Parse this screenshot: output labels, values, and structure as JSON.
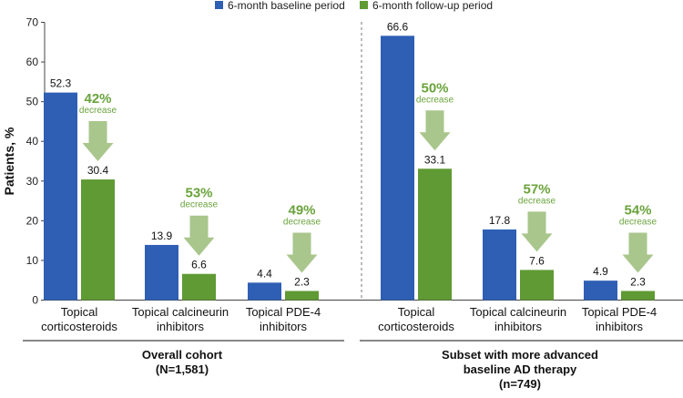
{
  "chart_data": {
    "type": "bar",
    "ylabel": "Patients, %",
    "ylim": [
      0,
      70
    ],
    "yticks": [
      0,
      10,
      20,
      30,
      40,
      50,
      60,
      70
    ],
    "colors": {
      "baseline": "#2e5fb4",
      "followup": "#5f9a34",
      "arrow": "#a9c68c",
      "pct_text": "#6aa33c"
    },
    "legend": [
      {
        "key": "baseline",
        "label": "6-month baseline period"
      },
      {
        "key": "followup",
        "label": "6-month follow-up period"
      }
    ],
    "groups": [
      {
        "label_lines": [
          "Overall cohort",
          "(N=1,581)"
        ],
        "categories": [
          {
            "label_lines": [
              "Topical",
              "corticosteroids"
            ],
            "baseline": 52.3,
            "followup": 30.4,
            "baseline_label": "52.3",
            "followup_label": "30.4",
            "decrease_pct": "42%",
            "decrease_word": "decrease"
          },
          {
            "label_lines": [
              "Topical calcineurin",
              "inhibitors"
            ],
            "baseline": 13.9,
            "followup": 6.6,
            "baseline_label": "13.9",
            "followup_label": "6.6",
            "decrease_pct": "53%",
            "decrease_word": "decrease"
          },
          {
            "label_lines": [
              "Topical PDE-4",
              "inhibitors"
            ],
            "baseline": 4.4,
            "followup": 2.3,
            "baseline_label": "4.4",
            "followup_label": "2.3",
            "decrease_pct": "49%",
            "decrease_word": "decrease"
          }
        ]
      },
      {
        "label_lines": [
          "Subset with more advanced",
          "baseline AD therapy",
          "(n=749)"
        ],
        "categories": [
          {
            "label_lines": [
              "Topical",
              "corticosteroids"
            ],
            "baseline": 66.6,
            "followup": 33.1,
            "baseline_label": "66.6",
            "followup_label": "33.1",
            "decrease_pct": "50%",
            "decrease_word": "decrease"
          },
          {
            "label_lines": [
              "Topical calcineurin",
              "inhibitors"
            ],
            "baseline": 17.8,
            "followup": 7.6,
            "baseline_label": "17.8",
            "followup_label": "7.6",
            "decrease_pct": "57%",
            "decrease_word": "decrease"
          },
          {
            "label_lines": [
              "Topical PDE-4",
              "inhibitors"
            ],
            "baseline": 4.9,
            "followup": 2.3,
            "baseline_label": "4.9",
            "followup_label": "2.3",
            "decrease_pct": "54%",
            "decrease_word": "decrease"
          }
        ]
      }
    ]
  }
}
